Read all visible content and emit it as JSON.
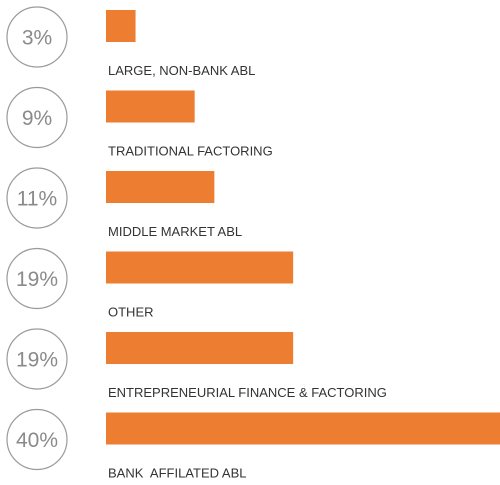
{
  "chart_data": {
    "type": "bar",
    "orientation": "horizontal",
    "categories": [
      "LARGE, NON-BANK ABL",
      "TRADITIONAL FACTORING",
      "MIDDLE MARKET ABL",
      "OTHER",
      "ENTREPRENEURIAL FINANCE & FACTORING",
      "BANK  AFFILATED ABL"
    ],
    "values": [
      3,
      9,
      11,
      19,
      19,
      40
    ],
    "value_labels": [
      "3%",
      "9%",
      "11%",
      "19%",
      "19%",
      "40%"
    ],
    "unit": "%",
    "xlim": [
      0,
      40
    ],
    "grid": false,
    "legend": "none",
    "title": "",
    "xlabel": "",
    "ylabel": ""
  },
  "colors": {
    "bar": "#ed7d31",
    "circle_stroke": "#9a9a9a",
    "percent_text": "#8a8a8a",
    "label_text": "#333333"
  }
}
